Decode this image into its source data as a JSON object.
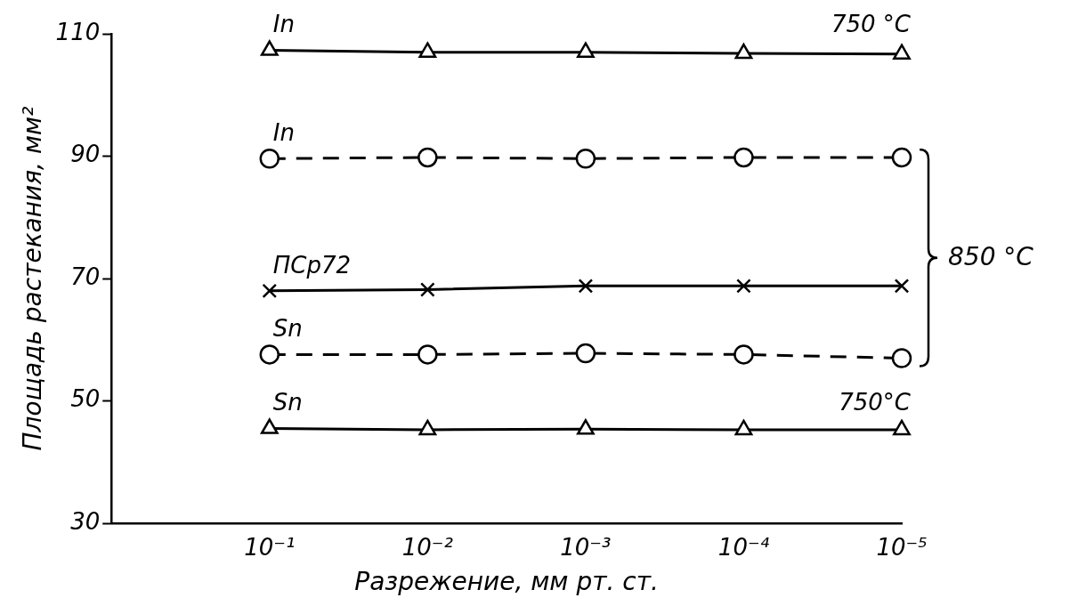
{
  "chart_data": {
    "type": "line",
    "xlabel": "Разрежение, мм рт. ст.",
    "ylabel": "Площадь растекания, мм²",
    "x": [
      0.1,
      0.01,
      0.001,
      0.0001,
      1e-05
    ],
    "xlim": [
      1,
      1e-05
    ],
    "log": "x",
    "xticks": [
      {
        "value": 0.1,
        "label": "10⁻¹"
      },
      {
        "value": 0.01,
        "label": "10⁻²"
      },
      {
        "value": 0.001,
        "label": "10⁻³"
      },
      {
        "value": 0.0001,
        "label": "10⁻⁴"
      },
      {
        "value": 1e-05,
        "label": "10⁻⁵"
      }
    ],
    "ylim": [
      30,
      110
    ],
    "yticks": [
      30,
      50,
      70,
      90,
      110
    ],
    "grid": false,
    "legend": false,
    "series": [
      {
        "name": "In",
        "color": "#000000",
        "marker": "triangle",
        "line_style": "solid",
        "values": [
          107.3,
          107,
          107,
          106.8,
          106.7
        ]
      },
      {
        "name": "In",
        "color": "#000000",
        "marker": "circle",
        "line_style": "dashed",
        "values": [
          89.6,
          89.8,
          89.6,
          89.8,
          89.8
        ]
      },
      {
        "name": "ПСр72",
        "color": "#000000",
        "marker": "cross",
        "line_style": "solid",
        "values": [
          68,
          68.2,
          68.8,
          68.8,
          68.8
        ]
      },
      {
        "name": "Sn",
        "color": "#000000",
        "marker": "circle",
        "line_style": "dashed",
        "values": [
          57.6,
          57.6,
          57.8,
          57.6,
          57
        ]
      },
      {
        "name": "Sn",
        "color": "#000000",
        "marker": "triangle",
        "line_style": "solid",
        "values": [
          45.5,
          45.3,
          45.4,
          45.3,
          45.3
        ]
      }
    ],
    "annotations": [
      {
        "text": "750 °C",
        "x": 1e-05,
        "y": 107
      },
      "850 °C",
      {
        "text": "750°C",
        "x": 1e-05,
        "y": 45.3
      }
    ]
  }
}
